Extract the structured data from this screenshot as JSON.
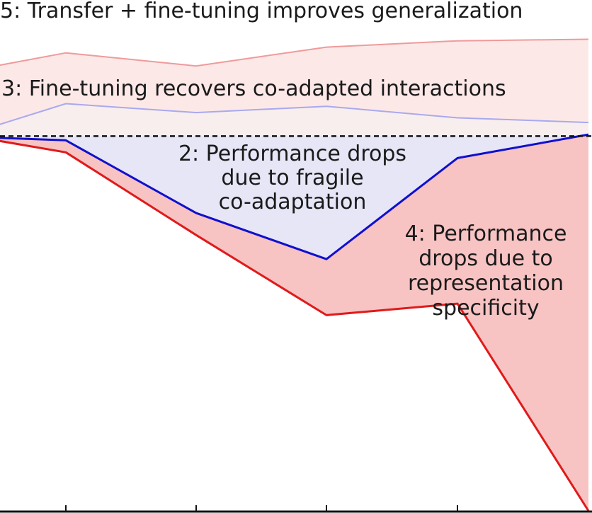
{
  "chart_data": {
    "type": "line",
    "x": [
      0,
      1,
      2,
      3,
      4,
      5
    ],
    "series": [
      {
        "role": "transfer_finetune",
        "color": "#f09a9a",
        "fill": "#fde8e8",
        "values": [
          1.114,
          1.139,
          1.114,
          1.15,
          1.162,
          1.165
        ]
      },
      {
        "role": "selffer_finetune",
        "color": "#a9a9ee",
        "fill": "#f8eeee",
        "values": [
          1.0,
          1.042,
          1.025,
          1.037,
          1.015,
          1.006
        ]
      },
      {
        "role": "selffer_frozen",
        "color": "#1010cc",
        "fill": "#e6e6f7",
        "values": [
          0.977,
          0.972,
          0.833,
          0.745,
          0.938,
          0.983
        ]
      },
      {
        "role": "transfer_frozen",
        "color": "#e01a1a",
        "fill": "#f7c3c3",
        "values": [
          0.972,
          0.949,
          0.791,
          0.638,
          0.66,
          0.264
        ]
      }
    ],
    "baseline": {
      "value": 0.98,
      "style": "dashed",
      "color": "#111111"
    },
    "ylim": [
      0.26,
      1.24
    ],
    "annotations": [
      {
        "id": "ann5",
        "lines": [
          "5: Transfer + fine-tuning improves generalization"
        ]
      },
      {
        "id": "ann3",
        "lines": [
          "3: Fine-tuning recovers co-adapted interactions"
        ]
      },
      {
        "id": "ann2",
        "lines": [
          "2: Performance drops",
          "due to fragile",
          "co-adaptation"
        ]
      },
      {
        "id": "ann4",
        "lines": [
          "4: Performance",
          "drops due to",
          "representation",
          "specificity"
        ]
      }
    ]
  }
}
